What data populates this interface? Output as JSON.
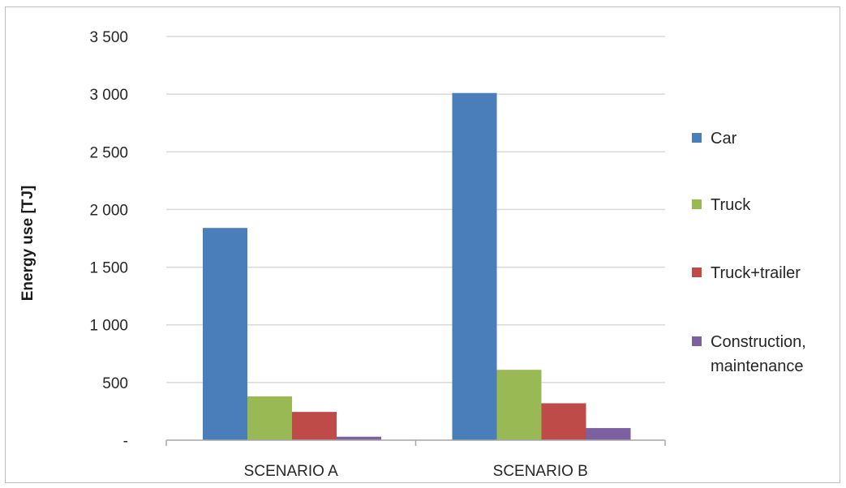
{
  "chart_data": {
    "type": "bar",
    "title": "",
    "xlabel": "",
    "ylabel": "Energy use [TJ]",
    "ylim": [
      0,
      3500
    ],
    "y_ticks": [
      0,
      500,
      1000,
      1500,
      2000,
      2500,
      3000,
      3500
    ],
    "y_tick_labels": [
      "-",
      "500",
      "1 000",
      "1 500",
      "2 000",
      "2 500",
      "3 000",
      "3 500"
    ],
    "grid": true,
    "legend_position": "right",
    "categories": [
      "SCENARIO A",
      "SCENARIO B"
    ],
    "series": [
      {
        "name": "Car",
        "values": [
          1840,
          3010
        ],
        "color": "#4a7ebb"
      },
      {
        "name": "Truck",
        "values": [
          380,
          610
        ],
        "color": "#98b954"
      },
      {
        "name": "Truck+trailer",
        "values": [
          245,
          320
        ],
        "color": "#be4b48"
      },
      {
        "name": [
          "Construction,",
          "maintenance"
        ],
        "values": [
          30,
          105
        ],
        "color": "#7d60a0"
      }
    ]
  }
}
